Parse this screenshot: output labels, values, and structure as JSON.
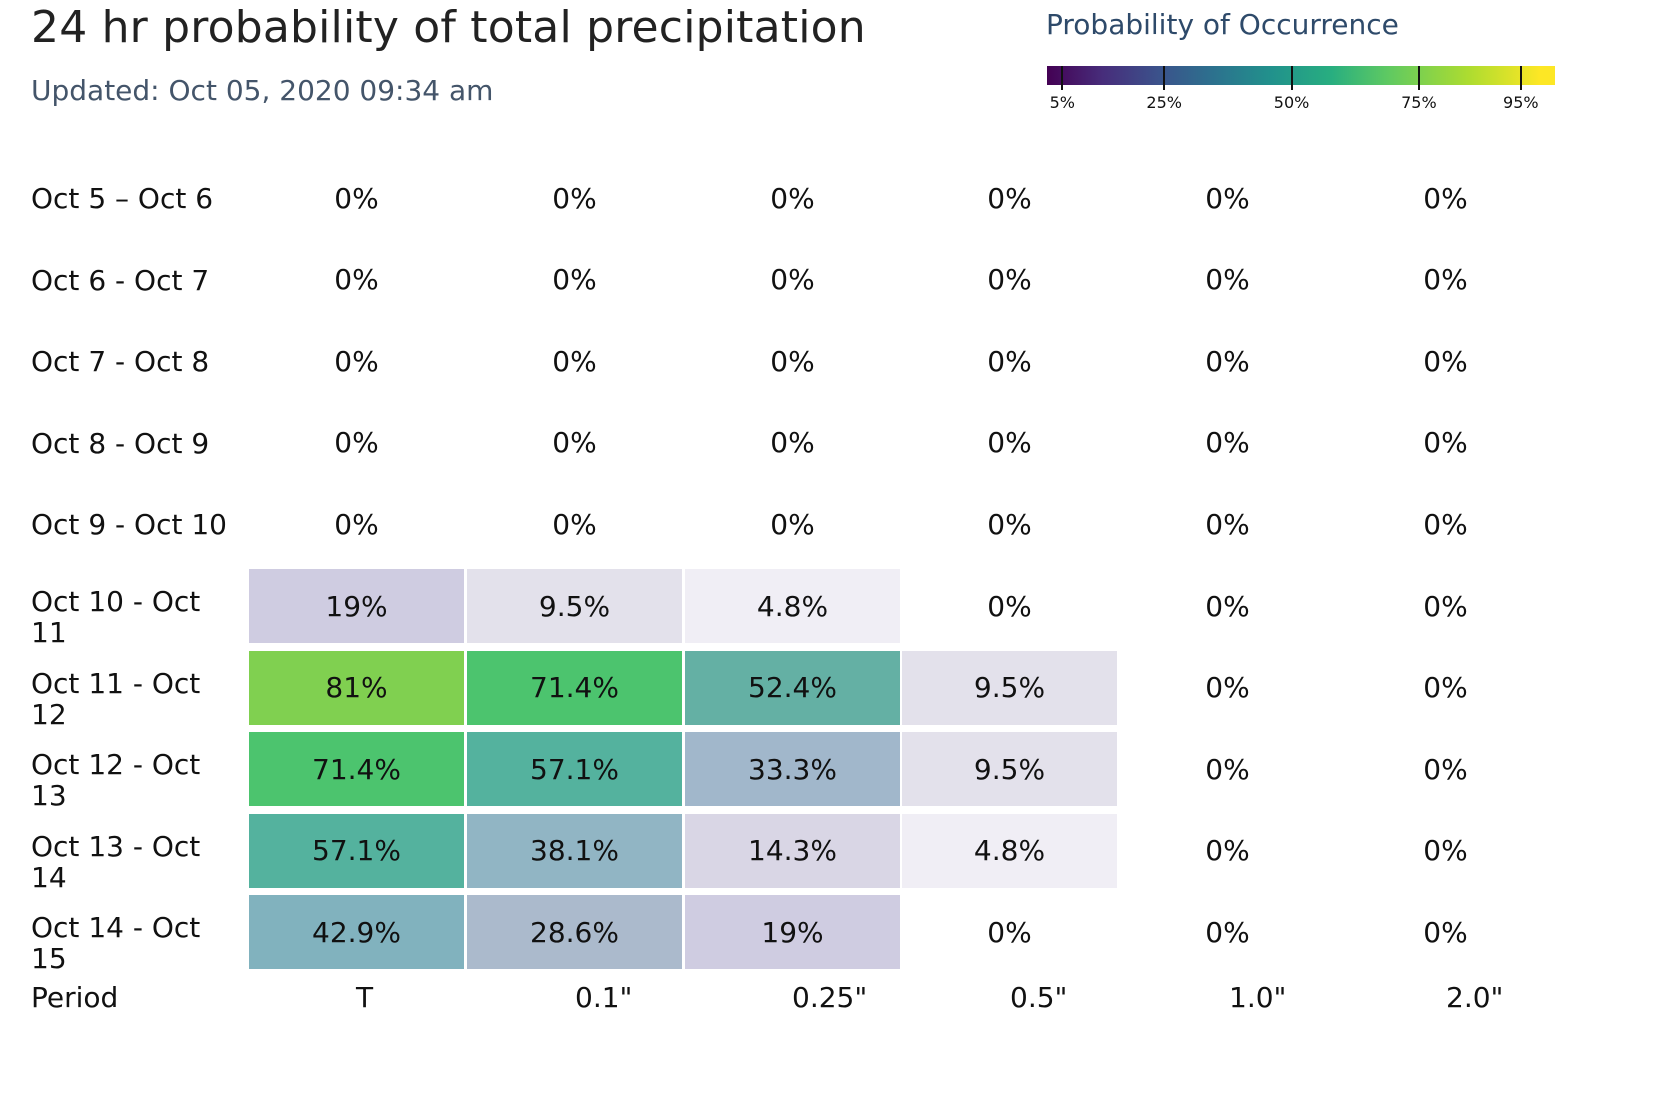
{
  "title": "24 hr probability of total precipitation",
  "subtitle": "Updated: Oct 05, 2020 09:34 am",
  "legend": {
    "title": "Probability of Occurrence",
    "ticks": [
      "5%",
      "25%",
      "50%",
      "75%",
      "95%"
    ],
    "tick_values": [
      5,
      25,
      50,
      75,
      95
    ]
  },
  "chart_data": {
    "type": "heatmap",
    "title": "24 hr probability of total precipitation",
    "xlabel": "",
    "ylabel": "Period",
    "colorscale": "viridis",
    "x": [
      "T",
      "0.1\"",
      "0.25\"",
      "0.5\"",
      "1.0\"",
      "2.0\""
    ],
    "y": [
      "Oct 5 – Oct 6",
      "Oct 6 - Oct 7",
      "Oct 7 - Oct 8",
      "Oct 8 - Oct 9",
      "Oct 9 - Oct 10",
      "Oct 10 - Oct 11",
      "Oct 11 - Oct 12",
      "Oct 12 - Oct 13",
      "Oct 13 - Oct 14",
      "Oct 14 - Oct 15"
    ],
    "z": [
      [
        0,
        0,
        0,
        0,
        0,
        0
      ],
      [
        0,
        0,
        0,
        0,
        0,
        0
      ],
      [
        0,
        0,
        0,
        0,
        0,
        0
      ],
      [
        0,
        0,
        0,
        0,
        0,
        0
      ],
      [
        0,
        0,
        0,
        0,
        0,
        0
      ],
      [
        19,
        9.5,
        4.8,
        0,
        0,
        0
      ],
      [
        81,
        71.4,
        52.4,
        9.5,
        0,
        0
      ],
      [
        71.4,
        57.1,
        33.3,
        9.5,
        0,
        0
      ],
      [
        57.1,
        38.1,
        14.3,
        4.8,
        0,
        0
      ],
      [
        42.9,
        28.6,
        19,
        0,
        0,
        0
      ]
    ],
    "text": [
      [
        "0%",
        "0%",
        "0%",
        "0%",
        "0%",
        "0%"
      ],
      [
        "0%",
        "0%",
        "0%",
        "0%",
        "0%",
        "0%"
      ],
      [
        "0%",
        "0%",
        "0%",
        "0%",
        "0%",
        "0%"
      ],
      [
        "0%",
        "0%",
        "0%",
        "0%",
        "0%",
        "0%"
      ],
      [
        "0%",
        "0%",
        "0%",
        "0%",
        "0%",
        "0%"
      ],
      [
        "19%",
        "9.5%",
        "4.8%",
        "0%",
        "0%",
        "0%"
      ],
      [
        "81%",
        "71.4%",
        "52.4%",
        "9.5%",
        "0%",
        "0%"
      ],
      [
        "71.4%",
        "57.1%",
        "33.3%",
        "9.5%",
        "0%",
        "0%"
      ],
      [
        "57.1%",
        "38.1%",
        "14.3%",
        "4.8%",
        "0%",
        "0%"
      ],
      [
        "42.9%",
        "28.6%",
        "19%",
        "0%",
        "0%",
        "0%"
      ]
    ],
    "row_labels": [
      [
        "Oct 5 – Oct 6"
      ],
      [
        "Oct 6 - Oct 7"
      ],
      [
        "Oct 7 - Oct 8"
      ],
      [
        "Oct 8 - Oct 9"
      ],
      [
        "Oct 9 - Oct 10"
      ],
      [
        "Oct 10 - Oct",
        "11"
      ],
      [
        "Oct 11 - Oct",
        "12"
      ],
      [
        "Oct 12 - Oct",
        "13"
      ],
      [
        "Oct 13 - Oct",
        "14"
      ],
      [
        "Oct 14 - Oct",
        "15"
      ]
    ],
    "x_axis_labels": [
      "Period",
      "T",
      "0.1\"",
      "0.25\"",
      "0.5\"",
      "1.0\"",
      "2.0\""
    ]
  }
}
